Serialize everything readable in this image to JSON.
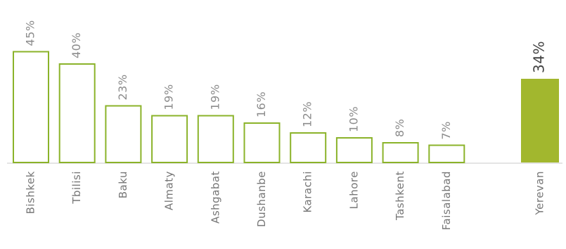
{
  "chart_data": {
    "type": "bar",
    "categories": [
      "Bishkek",
      "Tbilisi",
      "Baku",
      "Almaty",
      "Ashgabat",
      "Dushanbe",
      "Karachi",
      "Lahore",
      "Tashkent",
      "Faisalabad",
      "Yerevan"
    ],
    "values": [
      45,
      40,
      23,
      19,
      19,
      16,
      12,
      10,
      8,
      7,
      34
    ],
    "value_labels": [
      "45%",
      "40%",
      "23%",
      "19%",
      "19%",
      "16%",
      "12%",
      "10%",
      "8%",
      "7%",
      "34%"
    ],
    "highlight": "Yerevan",
    "unit": "%",
    "colors": {
      "outline": "#8bb32a",
      "highlight_fill": "#a2b72e",
      "label": "#8c8c8c",
      "highlight_label": "#444444"
    },
    "title": "",
    "xlabel": "",
    "ylabel": ""
  }
}
